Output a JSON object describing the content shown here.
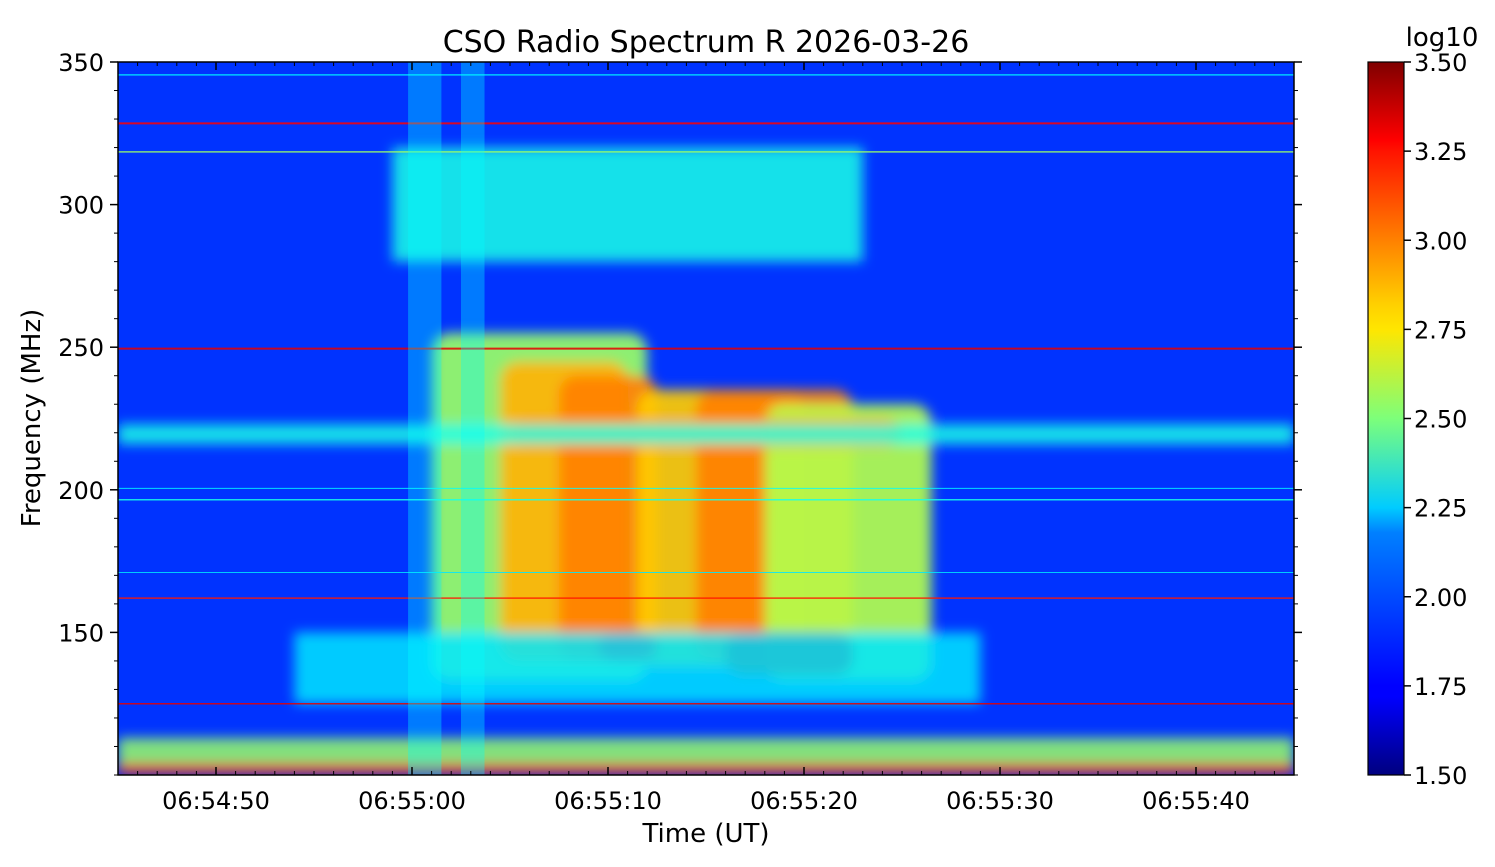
{
  "chart_data": {
    "type": "heatmap",
    "title": "CSO Radio Spectrum R 2026-03-26",
    "xlabel": "Time (UT)",
    "ylabel": "Frequency (MHz)",
    "colorbar_label": "log10",
    "colormap": "jet",
    "x_start": "06:54:45",
    "x_end": "06:55:45",
    "xlim_seconds": [
      0,
      60
    ],
    "x_ticks": [
      {
        "t": 5,
        "label": "06:54:50"
      },
      {
        "t": 15,
        "label": "06:55:00"
      },
      {
        "t": 25,
        "label": "06:55:10"
      },
      {
        "t": 35,
        "label": "06:55:20"
      },
      {
        "t": 45,
        "label": "06:55:30"
      },
      {
        "t": 55,
        "label": "06:55:40"
      }
    ],
    "ylim": [
      100,
      350
    ],
    "y_ticks": [
      {
        "v": 150,
        "label": "150"
      },
      {
        "v": 200,
        "label": "200"
      },
      {
        "v": 250,
        "label": "250"
      },
      {
        "v": 300,
        "label": "300"
      },
      {
        "v": 350,
        "label": "350"
      }
    ],
    "clim": [
      1.5,
      3.5
    ],
    "colorbar_ticks": [
      {
        "v": 1.5,
        "label": "1.50"
      },
      {
        "v": 1.75,
        "label": "1.75"
      },
      {
        "v": 2.0,
        "label": "2.00"
      },
      {
        "v": 2.25,
        "label": "2.25"
      },
      {
        "v": 2.5,
        "label": "2.50"
      },
      {
        "v": 2.75,
        "label": "2.75"
      },
      {
        "v": 3.0,
        "label": "3.00"
      },
      {
        "v": 3.25,
        "label": "3.25"
      },
      {
        "v": 3.5,
        "label": "3.50"
      }
    ],
    "background_level": 1.85,
    "features": [
      {
        "kind": "burst",
        "t": [
          16.0,
          27.0
        ],
        "f": [
          133,
          255
        ],
        "level": 2.55
      },
      {
        "kind": "burst",
        "t": [
          19.5,
          26.0
        ],
        "f": [
          140,
          245
        ],
        "level": 2.9
      },
      {
        "kind": "burst",
        "t": [
          22.5,
          27.5
        ],
        "f": [
          140,
          240
        ],
        "level": 3.0
      },
      {
        "kind": "burst",
        "t": [
          26.5,
          35.0
        ],
        "f": [
          138,
          235
        ],
        "level": 2.85
      },
      {
        "kind": "burst",
        "t": [
          29.5,
          37.5
        ],
        "f": [
          140,
          235
        ],
        "level": 3.0
      },
      {
        "kind": "burst",
        "t": [
          33.0,
          41.5
        ],
        "f": [
          133,
          230
        ],
        "level": 2.6
      },
      {
        "kind": "burst",
        "t": [
          24.5,
          27.5
        ],
        "f": [
          140,
          150
        ],
        "level": 3.25
      },
      {
        "kind": "burst",
        "t": [
          31.0,
          37.5
        ],
        "f": [
          135,
          150
        ],
        "level": 3.4
      },
      {
        "kind": "burst",
        "t": [
          20.0,
          40.0
        ],
        "f": [
          215,
          225
        ],
        "level": 2.95
      },
      {
        "kind": "band",
        "t": [
          14.0,
          38.0
        ],
        "f": [
          280,
          320
        ],
        "level": 2.3
      },
      {
        "kind": "band",
        "t": [
          9.0,
          44.0
        ],
        "f": [
          125,
          150
        ],
        "level": 2.2
      },
      {
        "kind": "band",
        "t": [
          0,
          60
        ],
        "f": [
          216,
          223
        ],
        "level": 2.3
      },
      {
        "kind": "band",
        "t": [
          0,
          60
        ],
        "f": [
          103,
          113
        ],
        "level": 2.55
      },
      {
        "kind": "band",
        "t": [
          0,
          60
        ],
        "f": [
          100,
          104
        ],
        "level": 3.2
      }
    ]
  }
}
